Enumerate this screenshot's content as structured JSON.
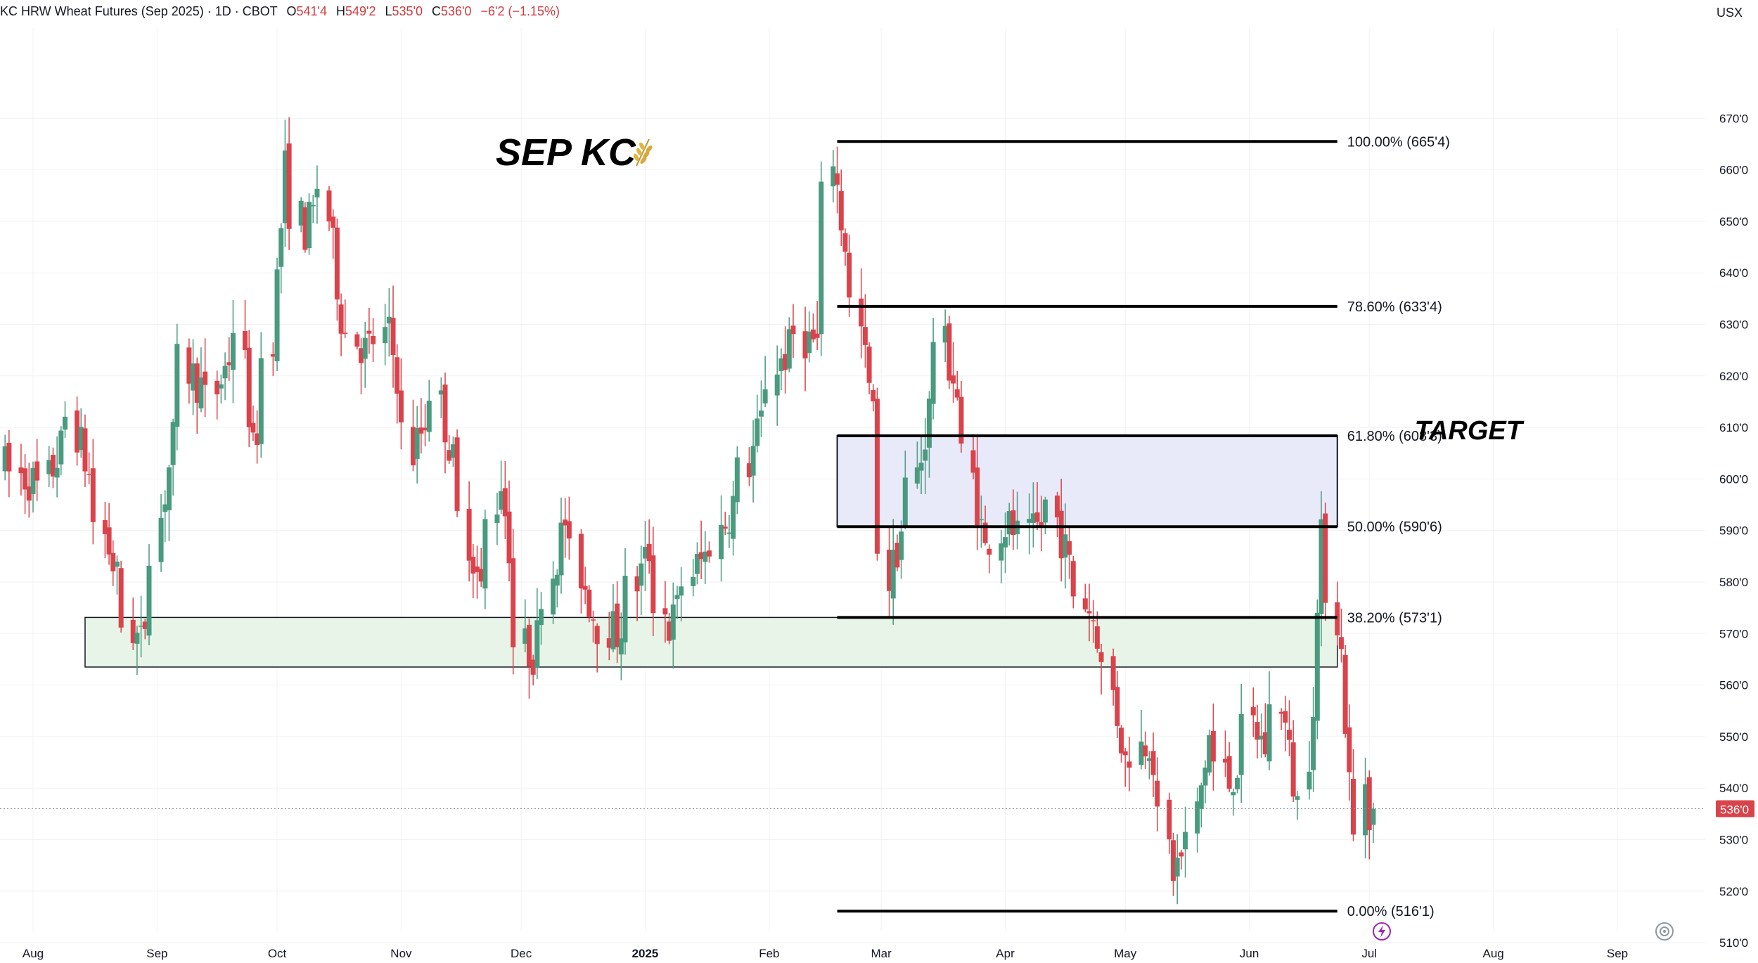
{
  "header": {
    "symbol": "KC HRW Wheat Futures (Sep 2025) · 1D · CBOT",
    "open_label": "O",
    "open": "541'4",
    "high_label": "H",
    "high": "549'2",
    "low_label": "L",
    "low": "535'0",
    "close_label": "C",
    "close": "536'0",
    "change": "−6'2 (−1.15%)"
  },
  "currency": "USX",
  "annotations": {
    "title": "SEP KC",
    "title_icon": "wheat-icon",
    "target_label": "TARGET"
  },
  "colors": {
    "up": "#4a9a7f",
    "down": "#d9434b",
    "target_fill": "#e8eaf9",
    "support_fill": "#e8f4e8",
    "accent": "#9c27b0"
  },
  "icons": [
    "lightning-icon",
    "settings-icon"
  ],
  "chart_data": {
    "type": "candlestick",
    "ylim": [
      505,
      675
    ],
    "y_ticks": [
      "670'0",
      "660'0",
      "650'0",
      "640'0",
      "630'0",
      "620'0",
      "610'0",
      "600'0",
      "590'0",
      "580'0",
      "570'0",
      "560'0",
      "550'0",
      "540'0",
      "530'0",
      "520'0",
      "510'0"
    ],
    "y_tick_values": [
      670,
      660,
      650,
      640,
      630,
      620,
      610,
      600,
      590,
      580,
      570,
      560,
      550,
      540,
      530,
      520,
      510
    ],
    "x_ticks": [
      "Aug",
      "Sep",
      "Oct",
      "Nov",
      "Dec",
      "2025",
      "Feb",
      "Mar",
      "Apr",
      "May",
      "Jun",
      "Jul",
      "Aug",
      "Sep"
    ],
    "x_tick_dates": [
      "2024-08-01",
      "2024-09-01",
      "2024-10-01",
      "2024-11-01",
      "2024-12-01",
      "2025-01-01",
      "2025-02-01",
      "2025-03-01",
      "2025-04-01",
      "2025-05-01",
      "2025-06-01",
      "2025-07-01",
      "2025-08-01",
      "2025-09-01"
    ],
    "last_price_label": "536'0",
    "last_price": 536.0,
    "fib_levels": [
      {
        "label": "100.00% (665'4)",
        "value": 665.5
      },
      {
        "label": "78.60% (633'4)",
        "value": 633.5
      },
      {
        "label": "61.80% (608'3)",
        "value": 608.375
      },
      {
        "label": "50.00% (590'6)",
        "value": 590.75
      },
      {
        "label": "38.20% (573'1)",
        "value": 573.125
      },
      {
        "label": "0.00% (516'1)",
        "value": 516.125
      }
    ],
    "fib_start_date": "2025-02-18",
    "fib_end_date": "2025-06-23",
    "target_zone": {
      "label": "TARGET",
      "low": 590.75,
      "high": 608.375,
      "start_date": "2025-02-18",
      "end_date": "2025-06-23"
    },
    "support_zone": {
      "low": 563.5,
      "high": 573.125,
      "start_date": "2024-08-14",
      "end_date": "2025-06-23"
    },
    "waypoints": [
      [
        "2024-07-25",
        603
      ],
      [
        "2024-08-05",
        598
      ],
      [
        "2024-08-12",
        612
      ],
      [
        "2024-08-26",
        572
      ],
      [
        "2024-08-29",
        568
      ],
      [
        "2024-09-09",
        622
      ],
      [
        "2024-09-16",
        615
      ],
      [
        "2024-09-23",
        630
      ],
      [
        "2024-09-26",
        605
      ],
      [
        "2024-10-01",
        628
      ],
      [
        "2024-10-04",
        660
      ],
      [
        "2024-10-09",
        648
      ],
      [
        "2024-10-14",
        657
      ],
      [
        "2024-10-18",
        632
      ],
      [
        "2024-10-24",
        625
      ],
      [
        "2024-10-30",
        628
      ],
      [
        "2024-11-05",
        605
      ],
      [
        "2024-11-11",
        618
      ],
      [
        "2024-11-18",
        592
      ],
      [
        "2024-11-22",
        578
      ],
      [
        "2024-11-27",
        600
      ],
      [
        "2024-12-02",
        568
      ],
      [
        "2024-12-05",
        566
      ],
      [
        "2024-12-13",
        592
      ],
      [
        "2024-12-20",
        574
      ],
      [
        "2024-12-26",
        570
      ],
      [
        "2025-01-03",
        586
      ],
      [
        "2025-01-08",
        571
      ],
      [
        "2025-01-14",
        582
      ],
      [
        "2025-01-20",
        588
      ],
      [
        "2025-01-28",
        603
      ],
      [
        "2025-02-04",
        622
      ],
      [
        "2025-02-10",
        628
      ],
      [
        "2025-02-14",
        626
      ],
      [
        "2025-02-18",
        663
      ],
      [
        "2025-02-20",
        650
      ],
      [
        "2025-02-24",
        634
      ],
      [
        "2025-02-28",
        612
      ],
      [
        "2025-03-04",
        580
      ],
      [
        "2025-03-07",
        590
      ],
      [
        "2025-03-12",
        604
      ],
      [
        "2025-03-17",
        628
      ],
      [
        "2025-03-20",
        620
      ],
      [
        "2025-03-25",
        600
      ],
      [
        "2025-03-28",
        586
      ],
      [
        "2025-04-02",
        591
      ],
      [
        "2025-04-08",
        588
      ],
      [
        "2025-04-14",
        595
      ],
      [
        "2025-04-18",
        583
      ],
      [
        "2025-04-24",
        573
      ],
      [
        "2025-04-28",
        563
      ],
      [
        "2025-05-02",
        545
      ],
      [
        "2025-05-08",
        550
      ],
      [
        "2025-05-14",
        524
      ],
      [
        "2025-05-19",
        530
      ],
      [
        "2025-05-23",
        550
      ],
      [
        "2025-05-28",
        541
      ],
      [
        "2025-06-03",
        552
      ],
      [
        "2025-06-06",
        548
      ],
      [
        "2025-06-10",
        557
      ],
      [
        "2025-06-13",
        541
      ],
      [
        "2025-06-16",
        537
      ],
      [
        "2025-06-18",
        558
      ],
      [
        "2025-06-20",
        588
      ],
      [
        "2025-06-23",
        580
      ],
      [
        "2025-06-25",
        566
      ],
      [
        "2025-06-27",
        541
      ],
      [
        "2025-06-30",
        530
      ],
      [
        "2025-07-01",
        542
      ],
      [
        "2025-07-02",
        536
      ]
    ]
  }
}
